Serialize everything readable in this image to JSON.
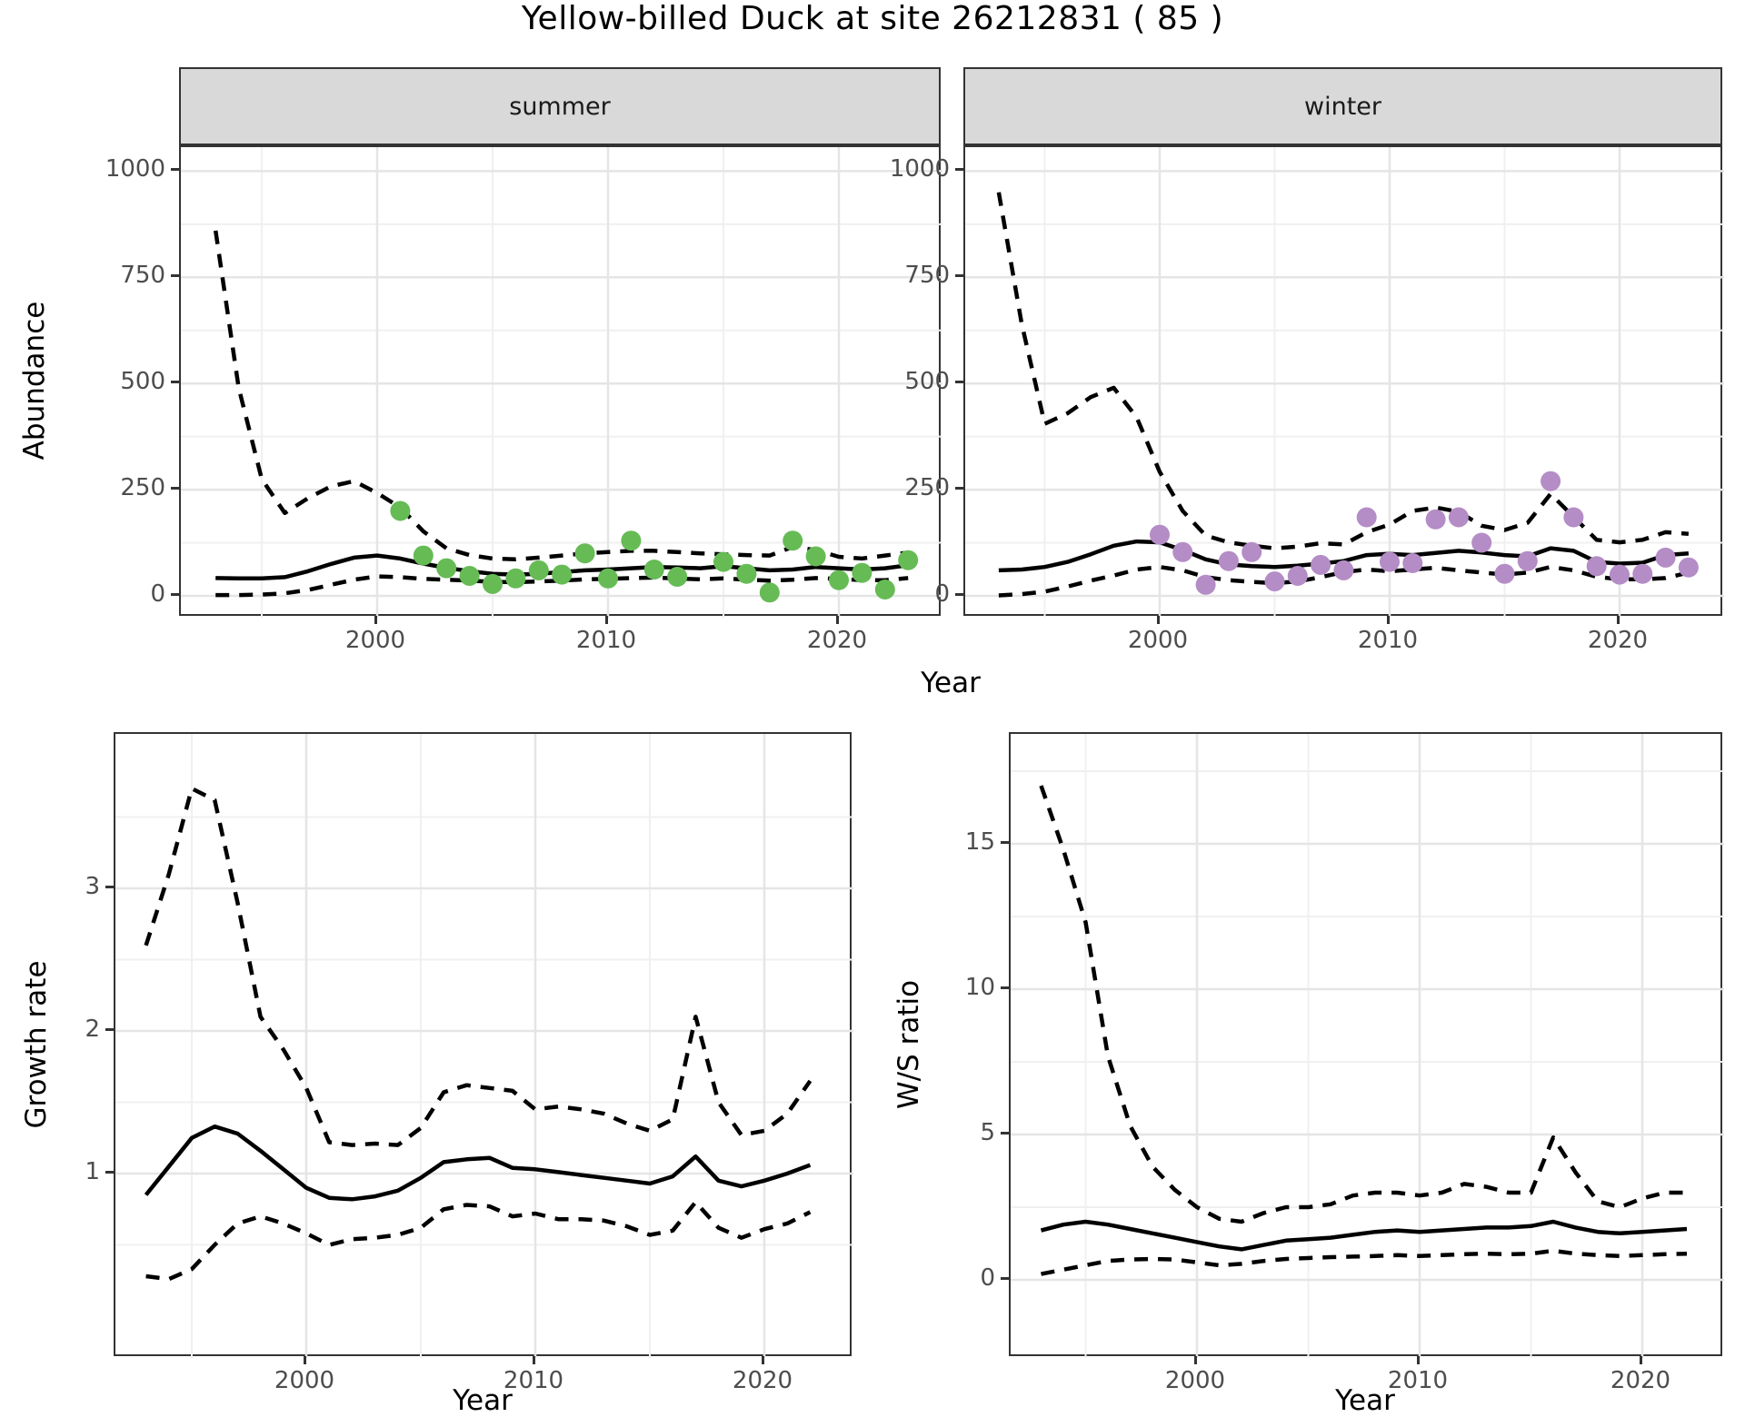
{
  "title": "Yellow-billed Duck at site 26212831 ( 85 )",
  "facets": [
    "summer",
    "winter"
  ],
  "axis_titles": {
    "x": "Year",
    "y_abundance": "Abundance",
    "y_growth": "Growth rate",
    "y_ws": "W/S ratio"
  },
  "colors": {
    "summer_point": "#66BB55",
    "winter_point": "#B48CC6",
    "line": "#000000",
    "grid_major": "#E5E5E5",
    "grid_minor": "#F0F0F0",
    "strip_bg": "#D9D9D9",
    "panel_border": "#333333",
    "tick_text": "#4D4D4D"
  },
  "chart_data": [
    {
      "type": "line",
      "id": "summer",
      "facet_label": "summer",
      "xlabel": "Year",
      "ylabel": "Abundance",
      "xlim": [
        1991.5,
        2024.4
      ],
      "ylim": [
        -50,
        1055
      ],
      "x_major_ticks": [
        2000,
        2010,
        2020
      ],
      "x_minor_ticks": [
        1995,
        2005,
        2015
      ],
      "y_major_ticks": [
        0,
        250,
        500,
        750,
        1000
      ],
      "y_minor_ticks": [
        125,
        375,
        625,
        875
      ],
      "years": [
        1993,
        1994,
        1995,
        1996,
        1997,
        1998,
        1999,
        2000,
        2001,
        2002,
        2003,
        2004,
        2005,
        2006,
        2007,
        2008,
        2009,
        2010,
        2011,
        2012,
        2013,
        2014,
        2015,
        2016,
        2017,
        2018,
        2019,
        2020,
        2021,
        2022,
        2023
      ],
      "series": [
        {
          "name": "median",
          "style": "solid",
          "values": [
            42,
            41,
            41,
            44,
            58,
            75,
            90,
            95,
            88,
            76,
            66,
            58,
            52,
            50,
            52,
            56,
            60,
            62,
            65,
            68,
            67,
            65,
            70,
            65,
            60,
            62,
            68,
            65,
            62,
            65,
            72
          ]
        },
        {
          "name": "upper95",
          "style": "dashed",
          "values": [
            860,
            490,
            275,
            195,
            230,
            258,
            270,
            242,
            208,
            152,
            112,
            96,
            88,
            86,
            90,
            95,
            100,
            103,
            106,
            106,
            103,
            100,
            98,
            96,
            95,
            115,
            108,
            92,
            88,
            95,
            102
          ]
        },
        {
          "name": "lower95",
          "style": "dashed",
          "values": [
            2,
            2,
            3,
            6,
            14,
            26,
            38,
            46,
            44,
            40,
            38,
            36,
            33,
            32,
            34,
            36,
            39,
            40,
            42,
            43,
            41,
            39,
            41,
            38,
            36,
            38,
            42,
            40,
            37,
            37,
            42
          ]
        }
      ],
      "points": {
        "name": "observed-summer-counts",
        "color_key": "summer_point",
        "years": [
          2001,
          2002,
          2003,
          2004,
          2005,
          2006,
          2007,
          2008,
          2009,
          2010,
          2011,
          2012,
          2013,
          2015,
          2016,
          2017,
          2018,
          2019,
          2020,
          2021,
          2022,
          2023
        ],
        "values": [
          200,
          95,
          65,
          47,
          28,
          41,
          60,
          50,
          100,
          41,
          130,
          62,
          45,
          80,
          52,
          8,
          130,
          93,
          37,
          54,
          15,
          84
        ]
      }
    },
    {
      "type": "line",
      "id": "winter",
      "facet_label": "winter",
      "xlabel": "Year",
      "ylabel": "Abundance",
      "xlim": [
        1991.5,
        2024.5
      ],
      "ylim": [
        -50,
        1055
      ],
      "x_major_ticks": [
        2000,
        2010,
        2020
      ],
      "x_minor_ticks": [
        1995,
        2005,
        2015
      ],
      "y_major_ticks": [
        0,
        250,
        500,
        750,
        1000
      ],
      "y_minor_ticks": [
        125,
        375,
        625,
        875
      ],
      "years": [
        1993,
        1994,
        1995,
        1996,
        1997,
        1998,
        1999,
        2000,
        2001,
        2002,
        2003,
        2004,
        2005,
        2006,
        2007,
        2008,
        2009,
        2010,
        2011,
        2012,
        2013,
        2014,
        2015,
        2016,
        2017,
        2018,
        2019,
        2020,
        2021,
        2022,
        2023
      ],
      "series": [
        {
          "name": "median",
          "style": "solid",
          "values": [
            60,
            62,
            68,
            80,
            98,
            118,
            128,
            126,
            108,
            86,
            74,
            70,
            68,
            71,
            76,
            82,
            96,
            99,
            96,
            101,
            106,
            102,
            96,
            93,
            112,
            106,
            80,
            76,
            78,
            96,
            100
          ]
        },
        {
          "name": "upper95",
          "style": "dashed",
          "values": [
            950,
            640,
            405,
            430,
            468,
            490,
            420,
            292,
            200,
            142,
            126,
            118,
            112,
            116,
            124,
            121,
            150,
            168,
            200,
            208,
            198,
            165,
            155,
            172,
            240,
            186,
            132,
            126,
            132,
            150,
            146
          ]
        },
        {
          "name": "lower95",
          "style": "dashed",
          "values": [
            1,
            4,
            10,
            22,
            36,
            48,
            62,
            68,
            60,
            44,
            37,
            33,
            30,
            34,
            44,
            56,
            62,
            58,
            62,
            66,
            60,
            55,
            50,
            55,
            68,
            60,
            45,
            39,
            39,
            42,
            55
          ]
        }
      ],
      "points": {
        "name": "observed-winter-counts",
        "color_key": "winter_point",
        "years": [
          2000,
          2001,
          2002,
          2003,
          2004,
          2005,
          2006,
          2007,
          2008,
          2009,
          2010,
          2011,
          2012,
          2013,
          2014,
          2015,
          2016,
          2017,
          2018,
          2019,
          2020,
          2021,
          2022,
          2023
        ],
        "values": [
          144,
          103,
          26,
          82,
          103,
          34,
          47,
          73,
          60,
          185,
          80,
          77,
          180,
          185,
          125,
          52,
          82,
          270,
          185,
          70,
          50,
          52,
          90,
          67
        ]
      }
    },
    {
      "type": "line",
      "id": "growth",
      "facet_label": null,
      "xlabel": "Year",
      "ylabel": "Growth rate",
      "xlim": [
        1991.7,
        2023.9
      ],
      "ylim": [
        -0.3,
        4.06
      ],
      "x_major_ticks": [
        2000,
        2010,
        2020
      ],
      "x_minor_ticks": [
        1995,
        2005,
        2015
      ],
      "y_major_ticks": [
        1,
        2,
        3
      ],
      "y_minor_ticks": [
        0.5,
        1.5,
        2.5,
        3.5
      ],
      "years": [
        1993,
        1994,
        1995,
        1996,
        1997,
        1998,
        1999,
        2000,
        2001,
        2002,
        2003,
        2004,
        2005,
        2006,
        2007,
        2008,
        2009,
        2010,
        2011,
        2012,
        2013,
        2014,
        2015,
        2016,
        2017,
        2018,
        2019,
        2020,
        2021,
        2022
      ],
      "series": [
        {
          "name": "median",
          "style": "solid",
          "values": [
            0.85,
            1.05,
            1.25,
            1.33,
            1.28,
            1.16,
            1.03,
            0.9,
            0.83,
            0.82,
            0.84,
            0.88,
            0.97,
            1.08,
            1.1,
            1.11,
            1.04,
            1.03,
            1.01,
            0.99,
            0.97,
            0.95,
            0.93,
            0.98,
            1.12,
            0.95,
            0.91,
            0.95,
            1.0,
            1.06
          ]
        },
        {
          "name": "upper95",
          "style": "dashed",
          "values": [
            2.6,
            3.1,
            3.7,
            3.62,
            2.9,
            2.1,
            1.87,
            1.6,
            1.22,
            1.2,
            1.21,
            1.2,
            1.32,
            1.57,
            1.62,
            1.6,
            1.58,
            1.45,
            1.47,
            1.45,
            1.42,
            1.35,
            1.3,
            1.38,
            2.1,
            1.5,
            1.27,
            1.3,
            1.42,
            1.65
          ]
        },
        {
          "name": "lower95",
          "style": "dashed",
          "values": [
            0.28,
            0.26,
            0.33,
            0.5,
            0.65,
            0.7,
            0.65,
            0.58,
            0.5,
            0.54,
            0.55,
            0.57,
            0.62,
            0.75,
            0.78,
            0.77,
            0.7,
            0.72,
            0.68,
            0.68,
            0.67,
            0.63,
            0.57,
            0.6,
            0.8,
            0.62,
            0.55,
            0.61,
            0.65,
            0.73
          ]
        }
      ],
      "points": null
    },
    {
      "type": "line",
      "id": "ws",
      "facet_label": null,
      "xlabel": "Year",
      "ylabel": "W/S ratio",
      "xlim": [
        1991.6,
        2023.7
      ],
      "ylim": [
        -2.7,
        18.8
      ],
      "x_major_ticks": [
        2000,
        2010,
        2020
      ],
      "x_minor_ticks": [
        1995,
        2005,
        2015
      ],
      "y_major_ticks": [
        0,
        5,
        10,
        15
      ],
      "y_minor_ticks": [
        2.5,
        7.5,
        12.5,
        17.5
      ],
      "years": [
        1993,
        1994,
        1995,
        1996,
        1997,
        1998,
        1999,
        2000,
        2001,
        2002,
        2003,
        2004,
        2005,
        2006,
        2007,
        2008,
        2009,
        2010,
        2011,
        2012,
        2013,
        2014,
        2015,
        2016,
        2017,
        2018,
        2019,
        2020,
        2021,
        2022
      ],
      "series": [
        {
          "name": "median",
          "style": "solid",
          "values": [
            1.7,
            1.9,
            2.0,
            1.9,
            1.75,
            1.6,
            1.45,
            1.3,
            1.15,
            1.05,
            1.2,
            1.35,
            1.4,
            1.45,
            1.55,
            1.65,
            1.7,
            1.65,
            1.7,
            1.75,
            1.8,
            1.8,
            1.85,
            2.0,
            1.8,
            1.65,
            1.6,
            1.65,
            1.7,
            1.75
          ]
        },
        {
          "name": "upper95",
          "style": "dashed",
          "values": [
            17.0,
            14.8,
            12.3,
            7.7,
            5.3,
            3.9,
            3.1,
            2.5,
            2.1,
            2.0,
            2.3,
            2.5,
            2.5,
            2.6,
            2.9,
            3.0,
            3.0,
            2.9,
            3.0,
            3.3,
            3.2,
            3.0,
            3.0,
            4.9,
            3.7,
            2.7,
            2.5,
            2.8,
            3.0,
            3.0
          ]
        },
        {
          "name": "lower95",
          "style": "dashed",
          "values": [
            0.2,
            0.35,
            0.5,
            0.65,
            0.7,
            0.72,
            0.7,
            0.6,
            0.5,
            0.55,
            0.65,
            0.72,
            0.75,
            0.78,
            0.8,
            0.82,
            0.85,
            0.82,
            0.85,
            0.88,
            0.9,
            0.88,
            0.9,
            1.0,
            0.9,
            0.85,
            0.82,
            0.85,
            0.88,
            0.9
          ]
        }
      ],
      "points": null
    }
  ]
}
